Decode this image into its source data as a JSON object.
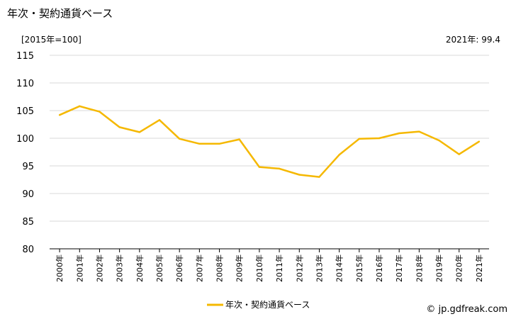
{
  "header": {
    "title": "年次・契約通貨ベース",
    "unit": "[2015年=100]",
    "latest": "2021年: 99.4"
  },
  "footer": {
    "source": "© jp.gdfreak.com"
  },
  "colors": {
    "series": "#f5b800",
    "grid": "#d9d9d9",
    "axis": "#000000"
  },
  "chart_data": {
    "type": "line",
    "title": "年次・契約通貨ベース",
    "ylabel": "[2015年=100]",
    "ylim": [
      80,
      115
    ],
    "yticks": [
      80,
      85,
      90,
      95,
      100,
      105,
      110,
      115
    ],
    "grid": true,
    "legend_position": "bottom-center",
    "categories": [
      "2000年",
      "2001年",
      "2002年",
      "2003年",
      "2004年",
      "2005年",
      "2006年",
      "2007年",
      "2008年",
      "2009年",
      "2010年",
      "2011年",
      "2012年",
      "2013年",
      "2014年",
      "2015年",
      "2016年",
      "2017年",
      "2018年",
      "2019年",
      "2020年",
      "2021年"
    ],
    "series": [
      {
        "name": "年次・契約通貨ベース",
        "values": [
          104.2,
          105.8,
          104.8,
          102.0,
          101.1,
          103.3,
          99.9,
          99.0,
          99.0,
          99.8,
          94.8,
          94.5,
          93.4,
          93.0,
          97.0,
          99.9,
          100.0,
          100.9,
          101.2,
          99.6,
          97.1,
          99.4
        ]
      }
    ]
  }
}
